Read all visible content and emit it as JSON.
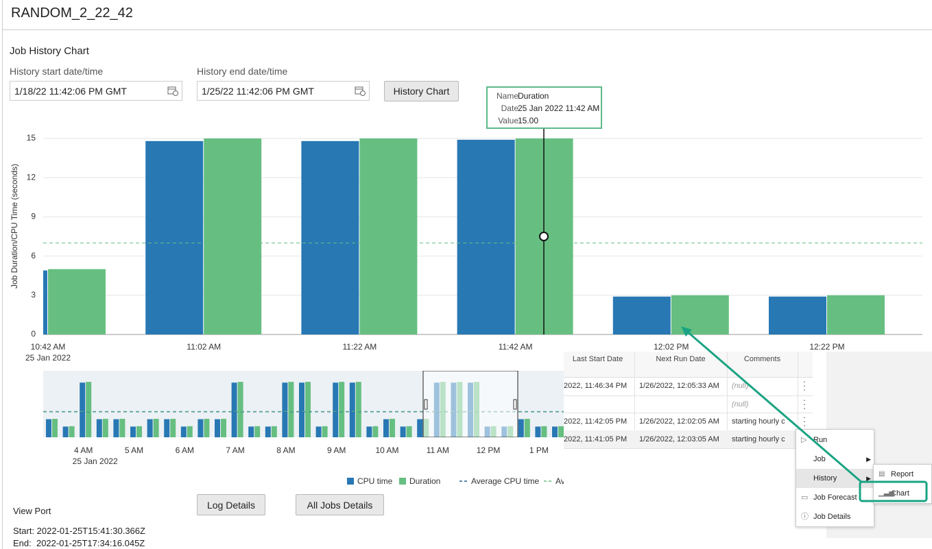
{
  "header": {
    "title": "RANDOM_2_22_42"
  },
  "form": {
    "section_title": "Job History Chart",
    "start_label": "History start date/time",
    "start_value": "1/18/22 11:42:06 PM GMT",
    "end_label": "History end date/time",
    "end_value": "1/25/22 11:42:06 PM GMT",
    "button": "History Chart"
  },
  "chart_data": [
    {
      "type": "bar",
      "y_label": "Job Duration/CPU Time (seconds)",
      "categories": [
        "10:42 AM",
        "11:02 AM",
        "11:22 AM",
        "11:42 AM",
        "12:02 PM",
        "12:22 PM"
      ],
      "date_label": "25 Jan 2022",
      "ylim": [
        0,
        15
      ],
      "yticks": [
        0,
        3,
        6,
        9,
        12,
        15
      ],
      "grid": true,
      "series": [
        {
          "name": "CPU time",
          "color": "#2878b4",
          "values": [
            4.9,
            14.8,
            14.8,
            14.9,
            2.9,
            2.9
          ]
        },
        {
          "name": "Duration",
          "color": "#66bf81",
          "values": [
            5,
            15,
            15,
            15,
            3,
            3
          ]
        }
      ],
      "average_line": {
        "value": 7,
        "color": "#66bf81"
      }
    },
    {
      "type": "bar",
      "categories": [
        null,
        null,
        "4 AM",
        null,
        null,
        "5 AM",
        null,
        null,
        "6 AM",
        null,
        null,
        "7 AM",
        null,
        null,
        "8 AM",
        null,
        null,
        "9 AM",
        null,
        null,
        "10 AM",
        null,
        null,
        "11 AM",
        null,
        null,
        "12 PM",
        null,
        null,
        "1 PM",
        null
      ],
      "date_label": "25 Jan 2022",
      "ylim": [
        0,
        18
      ],
      "series": [
        {
          "name": "CPU time",
          "color": "#2878b4",
          "values": [
            4.9,
            2.9,
            14.8,
            4.9,
            4.9,
            2.9,
            4.9,
            4.9,
            2.9,
            4.9,
            4.9,
            14.8,
            2.9,
            2.9,
            14.8,
            14.8,
            2.9,
            14.8,
            14.8,
            2.9,
            4.9,
            2.9,
            4.9,
            14.8,
            14.8,
            14.8,
            2.9,
            2.9,
            4.9,
            2.9,
            2.9
          ]
        },
        {
          "name": "Duration",
          "color": "#66bf81",
          "values": [
            5,
            3,
            15,
            5,
            5,
            3,
            5,
            5,
            3,
            5,
            5,
            15,
            3,
            3,
            15,
            15,
            3,
            15,
            15,
            3,
            5,
            3,
            5,
            15,
            15,
            15,
            3,
            3,
            5,
            3,
            3
          ]
        }
      ],
      "average_lines": [
        {
          "name": "Average CPU time",
          "color": "#1f5f94",
          "value": 6.9
        },
        {
          "name": "Av",
          "color": "#66bf81",
          "value": 7
        }
      ]
    }
  ],
  "tooltip": {
    "rows": [
      [
        "Name",
        "Duration"
      ],
      [
        "Date",
        "25 Jan 2022 11:42 AM"
      ],
      [
        "Value",
        "15.00"
      ]
    ]
  },
  "buttons": [
    "Log Details",
    "All Jobs Details"
  ],
  "viewport": {
    "title": "View Port",
    "start": "Start: 2022-01-25T15:41:30.366Z",
    "end": "End:  2022-01-25T17:34:16.045Z"
  },
  "table": {
    "columns": [
      "Last Start Date",
      "Next Run Date",
      "Comments"
    ],
    "rows": [
      [
        "2022, 11:46:34 PM",
        "1/26/2022, 12:05:33 AM",
        "(null)"
      ],
      [
        null,
        null,
        "(null)"
      ],
      [
        "2022, 11:42:05 PM",
        "1/26/2022, 12:02:05 AM",
        "starting hourly c"
      ],
      [
        "2022, 11:41:05 PM",
        "1/26/2022, 12:03:05 AM",
        "starting hourly c"
      ]
    ]
  },
  "menu": {
    "items": [
      "Run",
      "Job",
      "History",
      "Job Forecast",
      "Job Details"
    ],
    "submenu": [
      "Report",
      "Chart"
    ]
  }
}
